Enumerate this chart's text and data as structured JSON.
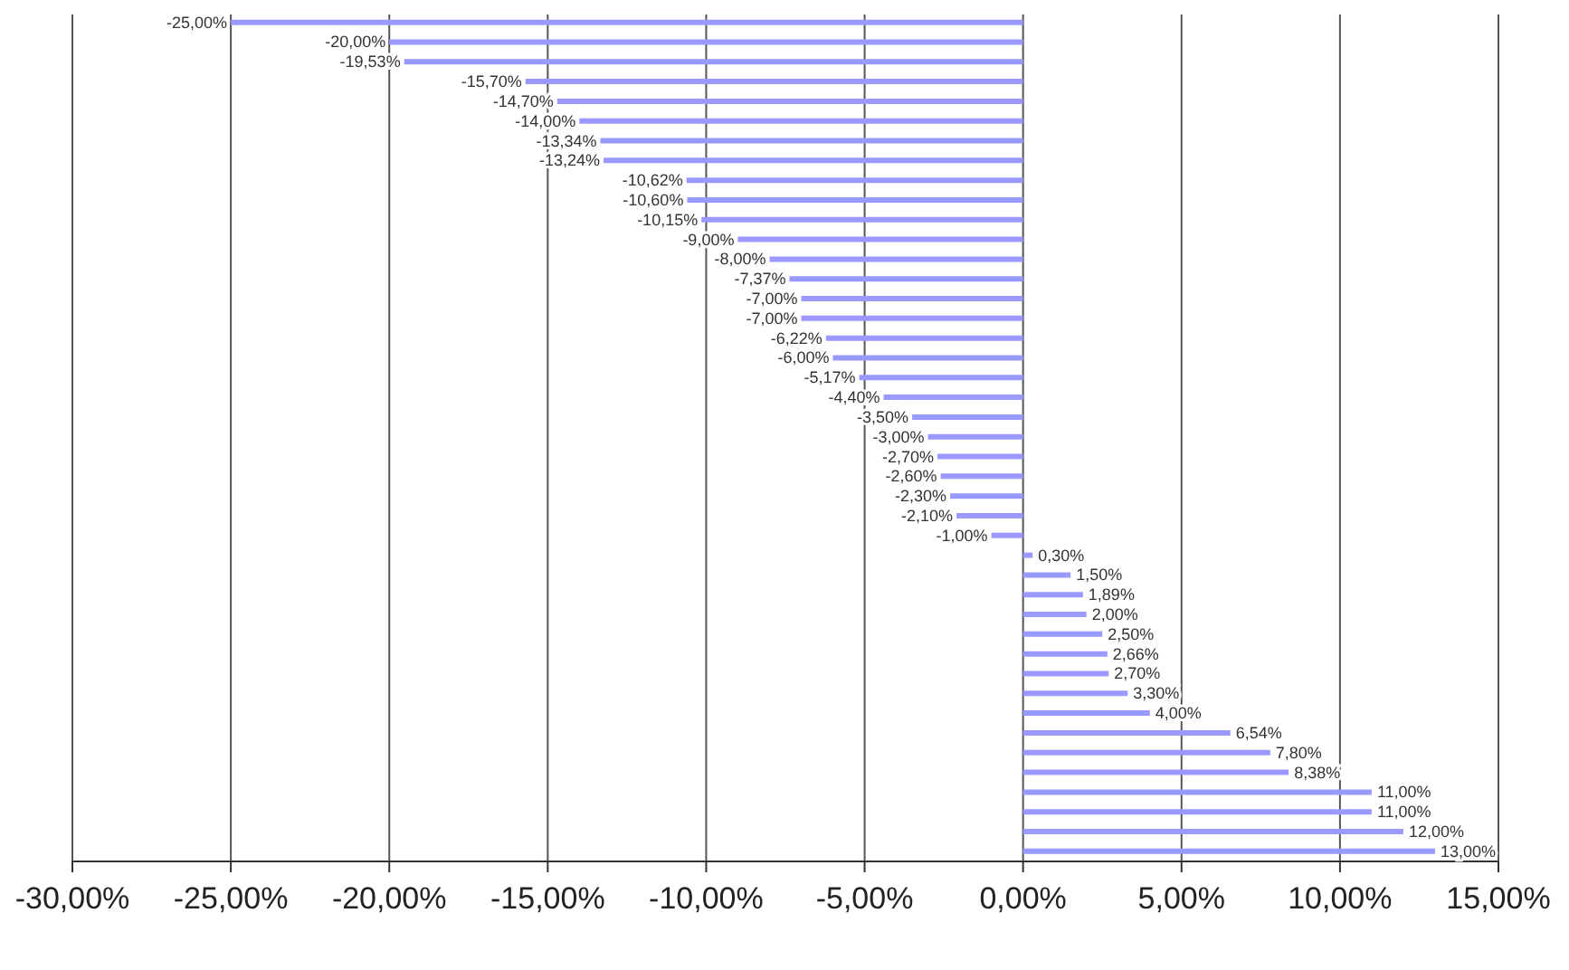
{
  "chart_data": {
    "type": "bar",
    "orientation": "horizontal",
    "categories": [
      null,
      null,
      null,
      null,
      null,
      null,
      null,
      null,
      null,
      null,
      null,
      null,
      null,
      null,
      null,
      null,
      null,
      null,
      null,
      null,
      null,
      null,
      null,
      null,
      null,
      null,
      null,
      null,
      null,
      null,
      null,
      null,
      null,
      null,
      null,
      null,
      null,
      null,
      null,
      null,
      null,
      null,
      null
    ],
    "values": [
      -25,
      -20,
      -19.53,
      -15.7,
      -14.7,
      -14,
      -13.34,
      -13.24,
      -10.62,
      -10.6,
      -10.15,
      -9,
      -8,
      -7.37,
      -7,
      -7,
      -6.22,
      -6,
      -5.17,
      -4.4,
      -3.5,
      -3,
      -2.7,
      -2.6,
      -2.3,
      -2.1,
      -1,
      0.3,
      1.5,
      1.89,
      2,
      2.5,
      2.66,
      2.7,
      3.3,
      4,
      6.54,
      7.8,
      8.38,
      11,
      11,
      12,
      13
    ],
    "value_labels": [
      "-25,00%",
      "-20,00%",
      "-19,53%",
      "-15,70%",
      "-14,70%",
      "-14,00%",
      "-13,34%",
      "-13,24%",
      "-10,62%",
      "-10,60%",
      "-10,15%",
      "-9,00%",
      "-8,00%",
      "-7,37%",
      "-7,00%",
      "-7,00%",
      "-6,22%",
      "-6,00%",
      "-5,17%",
      "-4,40%",
      "-3,50%",
      "-3,00%",
      "-2,70%",
      "-2,60%",
      "-2,30%",
      "-2,10%",
      "-1,00%",
      "0,30%",
      "1,50%",
      "1,89%",
      "2,00%",
      "2,50%",
      "2,66%",
      "2,70%",
      "3,30%",
      "4,00%",
      "6,54%",
      "7,80%",
      "8,38%",
      "11,00%",
      "11,00%",
      "12,00%",
      "13,00%"
    ],
    "color": "#9999ff",
    "xlim": [
      -30,
      15
    ],
    "xticks": [
      {
        "value": -30,
        "label": "-30,00%"
      },
      {
        "value": -25,
        "label": "-25,00%"
      },
      {
        "value": -20,
        "label": "-20,00%"
      },
      {
        "value": -15,
        "label": "-15,00%"
      },
      {
        "value": -10,
        "label": "-10,00%"
      },
      {
        "value": -5,
        "label": "-5,00%"
      },
      {
        "value": 0,
        "label": "0,00%"
      },
      {
        "value": 5,
        "label": "5,00%"
      },
      {
        "value": 10,
        "label": "10,00%"
      },
      {
        "value": 15,
        "label": "15,00%"
      }
    ],
    "grid": "x"
  }
}
